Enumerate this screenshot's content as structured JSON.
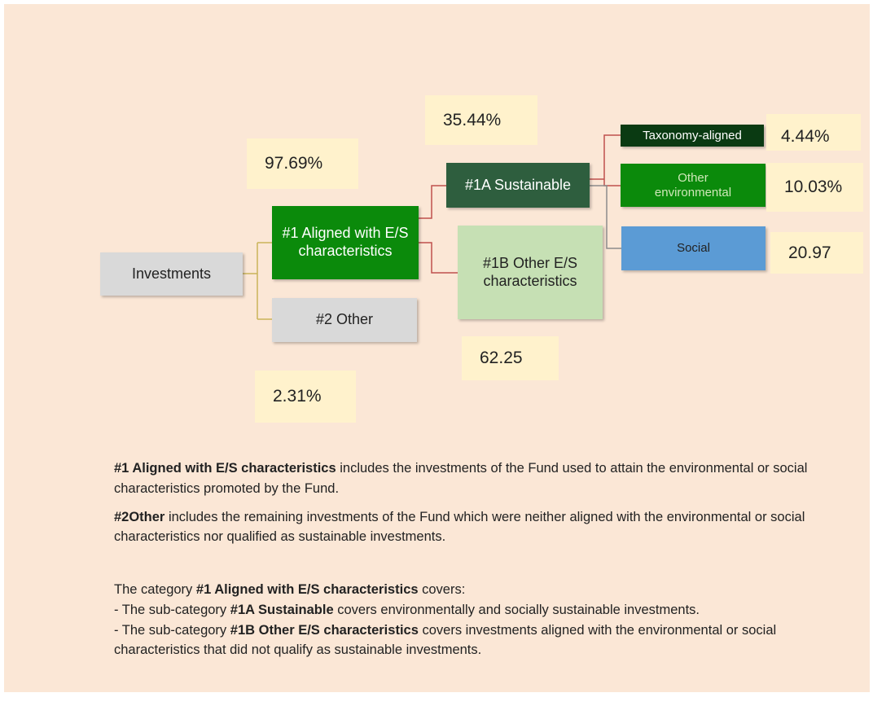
{
  "diagram": {
    "nodes": [
      {
        "id": "investments",
        "label": "Investments"
      },
      {
        "id": "aligned",
        "label": "#1 Aligned with E/S characteristics"
      },
      {
        "id": "other",
        "label": "#2 Other"
      },
      {
        "id": "sustainable",
        "label": "#1A Sustainable"
      },
      {
        "id": "other_es",
        "label": "#1B Other E/S characteristics"
      },
      {
        "id": "taxonomy",
        "label": "Taxonomy-aligned"
      },
      {
        "id": "other_env",
        "label": "Other environmental"
      },
      {
        "id": "social",
        "label": "Social"
      }
    ],
    "percentages": [
      "97.69%",
      "35.44%",
      "4.44%",
      "10.03%",
      "20.97",
      "62.25",
      "2.31%"
    ]
  },
  "notes": [
    {
      "bold": "#1 Aligned with E/S characteristics",
      "text": " includes the investments of the Fund used to attain the environmental or social characteristics promoted by the Fund."
    },
    {
      "bold": "#2Other",
      "text": " includes the remaining investments of the Fund which were neither aligned with the environmental or social characteristics nor qualified as sustainable investments."
    }
  ],
  "categories": {
    "intro": {
      "text": "The category ",
      "bold": "#1 Aligned with E/S characteristics",
      "after": " covers:"
    },
    "items": [
      {
        "prefix": "- The sub-category ",
        "bold": "#1A Sustainable",
        "text": " covers environmentally and socially sustainable investments."
      },
      {
        "prefix": "- The sub-category ",
        "bold": "#1B Other E/S characteristics",
        "text": " covers investments aligned with the environmental or social characteristics that did not qualify as sustainable investments."
      }
    ]
  }
}
